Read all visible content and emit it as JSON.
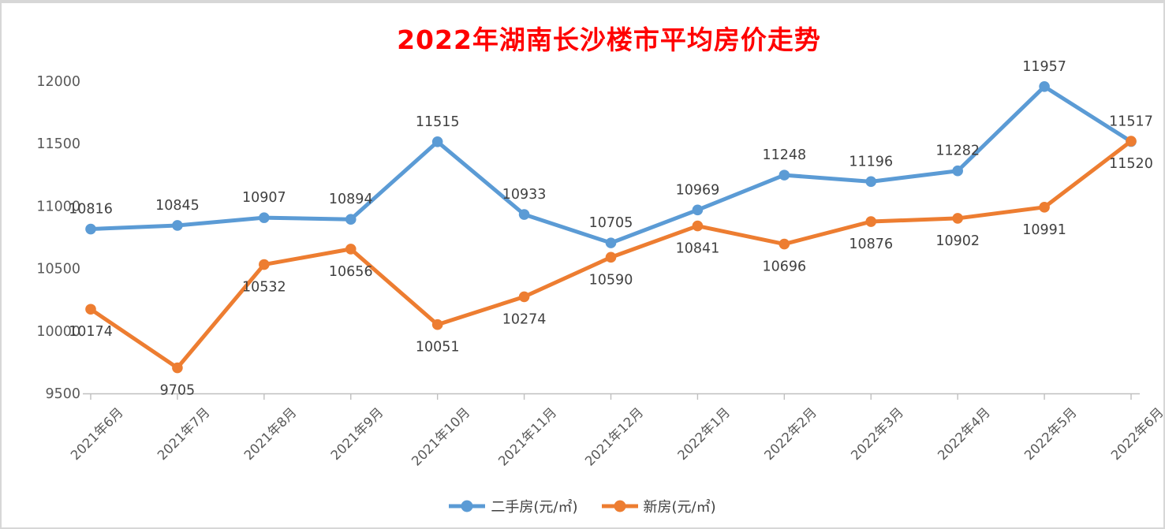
{
  "title": "2022年湖南长沙楼市平均房价走势",
  "colors": {
    "title": "#FF0000",
    "axis_text": "#595959",
    "label_text": "#404040",
    "axis_line": "#BFBFBF",
    "background": "#FFFFFF",
    "border": "#D7D7D7"
  },
  "chart_data": {
    "type": "line",
    "title": "2022年湖南长沙楼市平均房价走势",
    "categories": [
      "2021年6月",
      "2021年7月",
      "2021年8月",
      "2021年9月",
      "2021年10月",
      "2021年11月",
      "2021年12月",
      "2022年1月",
      "2022年2月",
      "2022年3月",
      "2022年4月",
      "2022年5月",
      "2022年6月"
    ],
    "series": [
      {
        "id": "secondhand",
        "name": "二手房(元/㎡)",
        "color": "#5B9BD5",
        "label_position": "above",
        "values": [
          10816,
          10845,
          10907,
          10894,
          11515,
          10933,
          10705,
          10969,
          11248,
          11196,
          11282,
          11957,
          11517
        ]
      },
      {
        "id": "new",
        "name": "新房(元/㎡)",
        "color": "#ED7D31",
        "label_position": "below",
        "values": [
          10174,
          9705,
          10532,
          10656,
          10051,
          10274,
          10590,
          10841,
          10696,
          10876,
          10902,
          10991,
          11520
        ]
      }
    ],
    "xlabel": "",
    "ylabel": "",
    "ylim": [
      9500,
      12000
    ],
    "yticks": [
      9500,
      10000,
      10500,
      11000,
      11500,
      12000
    ],
    "x_label_rotation": 45,
    "grid": false,
    "legend_position": "bottom",
    "data_labels": true
  }
}
